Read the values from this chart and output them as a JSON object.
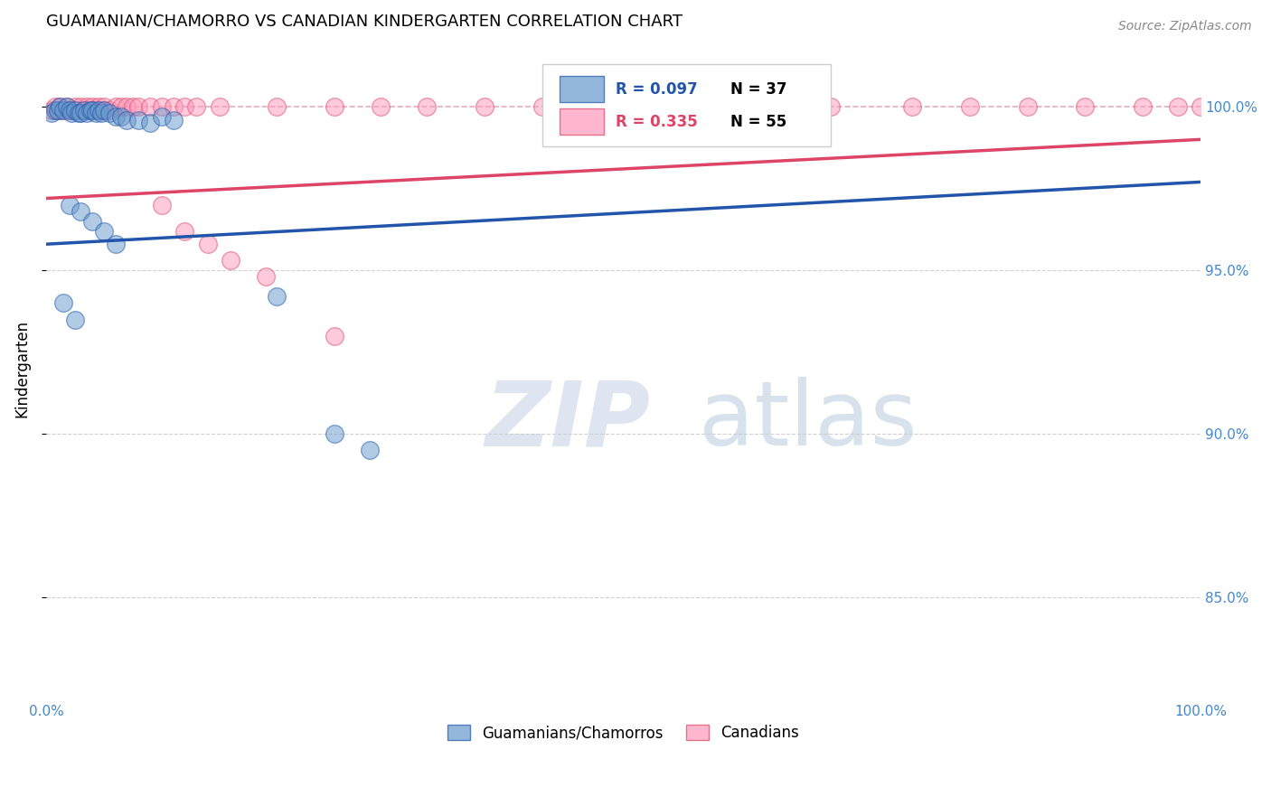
{
  "title": "GUAMANIAN/CHAMORRO VS CANADIAN KINDERGARTEN CORRELATION CHART",
  "source": "Source: ZipAtlas.com",
  "ylabel": "Kindergarten",
  "legend_blue_r": "R = 0.097",
  "legend_blue_n": "N = 37",
  "legend_pink_r": "R = 0.335",
  "legend_pink_n": "N = 55",
  "legend_blue_label": "Guamanians/Chamorros",
  "legend_pink_label": "Canadians",
  "blue_color": "#6699cc",
  "pink_color": "#ff99bb",
  "blue_line_color": "#2255aa",
  "pink_line_color": "#dd4466",
  "blue_x": [
    0.005,
    0.008,
    0.01,
    0.012,
    0.015,
    0.018,
    0.02,
    0.022,
    0.025,
    0.028,
    0.03,
    0.033,
    0.035,
    0.038,
    0.04,
    0.043,
    0.045,
    0.048,
    0.05,
    0.055,
    0.06,
    0.065,
    0.07,
    0.08,
    0.09,
    0.1,
    0.11,
    0.02,
    0.03,
    0.04,
    0.05,
    0.06,
    0.015,
    0.025,
    0.2,
    0.25,
    0.28
  ],
  "blue_y": [
    0.998,
    0.999,
    0.999,
    1.0,
    0.999,
    1.0,
    0.999,
    0.998,
    0.999,
    0.998,
    0.998,
    0.999,
    0.998,
    0.999,
    0.999,
    0.998,
    0.999,
    0.998,
    0.999,
    0.998,
    0.997,
    0.997,
    0.996,
    0.996,
    0.995,
    0.997,
    0.996,
    0.97,
    0.968,
    0.965,
    0.962,
    0.958,
    0.94,
    0.935,
    0.942,
    0.9,
    0.895
  ],
  "pink_x": [
    0.005,
    0.008,
    0.01,
    0.012,
    0.015,
    0.018,
    0.02,
    0.022,
    0.025,
    0.028,
    0.03,
    0.033,
    0.035,
    0.038,
    0.04,
    0.043,
    0.045,
    0.048,
    0.05,
    0.055,
    0.06,
    0.065,
    0.07,
    0.075,
    0.08,
    0.09,
    0.1,
    0.11,
    0.12,
    0.13,
    0.15,
    0.2,
    0.25,
    0.29,
    0.33,
    0.38,
    0.43,
    0.5,
    0.55,
    0.58,
    0.62,
    0.68,
    0.75,
    0.8,
    0.85,
    0.9,
    0.95,
    0.98,
    1.0,
    0.1,
    0.12,
    0.14,
    0.16,
    0.19,
    0.25
  ],
  "pink_y": [
    0.999,
    1.0,
    0.999,
    1.0,
    0.999,
    1.0,
    0.999,
    0.999,
    1.0,
    0.999,
    1.0,
    0.999,
    1.0,
    0.999,
    1.0,
    0.999,
    1.0,
    0.999,
    1.0,
    0.999,
    1.0,
    1.0,
    1.0,
    1.0,
    1.0,
    1.0,
    1.0,
    1.0,
    1.0,
    1.0,
    1.0,
    1.0,
    1.0,
    1.0,
    1.0,
    1.0,
    1.0,
    1.0,
    1.0,
    1.0,
    1.0,
    1.0,
    1.0,
    1.0,
    1.0,
    1.0,
    1.0,
    1.0,
    1.0,
    0.97,
    0.962,
    0.958,
    0.953,
    0.948,
    0.93
  ],
  "blue_trend_x": [
    0.0,
    1.0
  ],
  "blue_trend_y": [
    0.958,
    0.977
  ],
  "pink_trend_x": [
    0.0,
    1.0
  ],
  "pink_trend_y": [
    0.972,
    0.99
  ],
  "dashed_line_y": 1.0,
  "xlim": [
    0.0,
    1.0
  ],
  "ylim": [
    0.82,
    1.02
  ],
  "yticks": [
    0.85,
    0.9,
    0.95,
    1.0
  ],
  "ytick_labels": [
    "85.0%",
    "90.0%",
    "95.0%",
    "100.0%"
  ],
  "xtick_positions": [
    0.0,
    0.5,
    1.0
  ],
  "xtick_labels": [
    "0.0%",
    "",
    "100.0%"
  ]
}
